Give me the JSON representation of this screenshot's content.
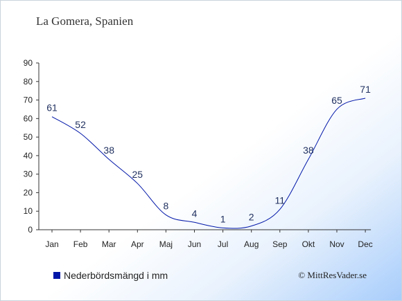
{
  "title": "La Gomera, Spanien",
  "legend": {
    "label": "Nederbördsmängd i mm",
    "color": "#0016a8"
  },
  "copyright": "© MittResVader.se",
  "chart_data": {
    "type": "line",
    "title": "La Gomera, Spanien",
    "categories": [
      "Jan",
      "Feb",
      "Mar",
      "Apr",
      "Maj",
      "Jun",
      "Jul",
      "Aug",
      "Sep",
      "Okt",
      "Nov",
      "Dec"
    ],
    "series": [
      {
        "name": "Nederbördsmängd i mm",
        "values": [
          61,
          52,
          38,
          25,
          8,
          4,
          1,
          2,
          11,
          38,
          65,
          71
        ]
      }
    ],
    "yticks": [
      0,
      10,
      20,
      30,
      40,
      50,
      60,
      70,
      80,
      90
    ],
    "ylim": [
      0,
      90
    ],
    "line_color": "#0016a8",
    "label_color": "#1f2f5f",
    "grid": false,
    "legend_position": "bottom-left"
  }
}
